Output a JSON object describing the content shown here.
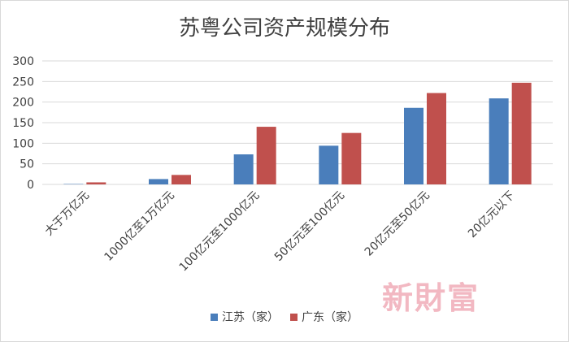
{
  "chart_data": {
    "type": "bar",
    "title": "苏粤公司资产规模分布",
    "categories": [
      "大于万亿元",
      "1000亿至1万亿元",
      "100亿元至1000亿元",
      "50亿元至100亿元",
      "20亿元至50亿元",
      "20亿元以下"
    ],
    "series": [
      {
        "name": "江苏（家）",
        "color": "#4a7ebb",
        "values": [
          1,
          13,
          73,
          94,
          186,
          209
        ]
      },
      {
        "name": "广东（家）",
        "color": "#c0504d",
        "values": [
          5,
          23,
          140,
          125,
          222,
          247
        ]
      }
    ],
    "ylim": [
      0,
      300
    ],
    "yticks": [
      0,
      50,
      100,
      150,
      200,
      250,
      300
    ],
    "xlabel": "",
    "ylabel": "",
    "grid": true,
    "legend": "bottom"
  },
  "watermark": "新財富"
}
